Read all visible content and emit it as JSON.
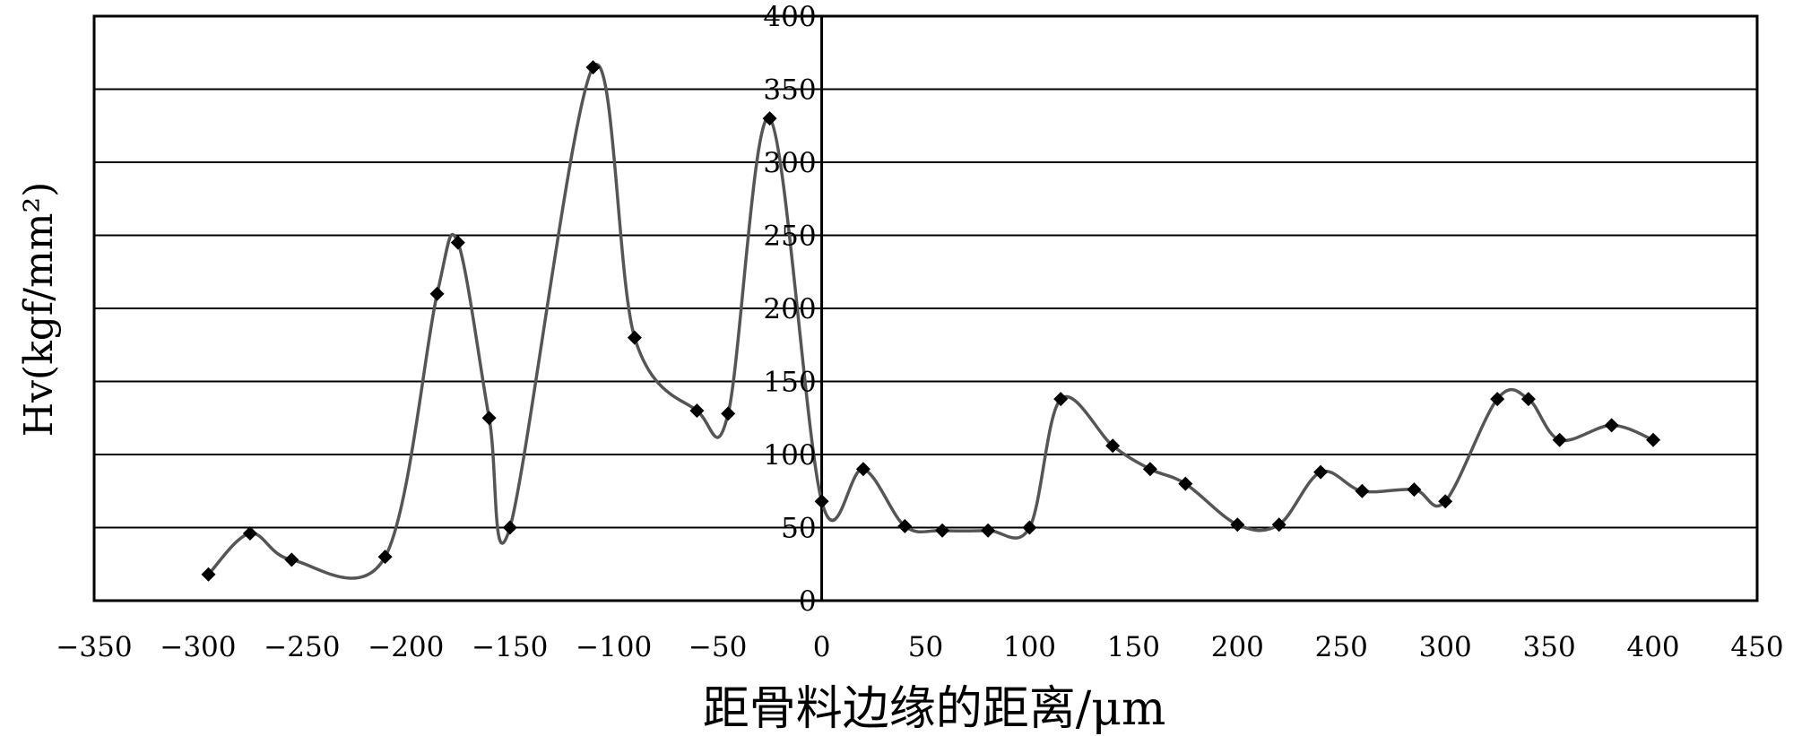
{
  "chart_data": {
    "type": "line",
    "xlabel": "距骨料边缘的距离/μm",
    "ylabel": "Hv(kgf/mm²)",
    "xlim": [
      -350,
      450
    ],
    "ylim": [
      0,
      400
    ],
    "x_ticks": [
      -350,
      -300,
      -250,
      -200,
      -150,
      -100,
      -50,
      0,
      50,
      100,
      150,
      200,
      250,
      300,
      350,
      400,
      450
    ],
    "y_ticks": [
      0,
      50,
      100,
      150,
      200,
      250,
      300,
      350,
      400
    ],
    "grid": "horizontal",
    "legend": "none",
    "marker": "diamond",
    "line_style": "smooth",
    "colors": {
      "line": "#555555",
      "marker": "#000000",
      "grid": "#000000"
    },
    "series": [
      {
        "points": [
          [
            -295,
            18
          ],
          [
            -275,
            46
          ],
          [
            -255,
            28
          ],
          [
            -210,
            30
          ],
          [
            -185,
            210
          ],
          [
            -175,
            245
          ],
          [
            -160,
            125
          ],
          [
            -150,
            50
          ],
          [
            -110,
            365
          ],
          [
            -90,
            180
          ],
          [
            -60,
            130
          ],
          [
            -45,
            128
          ],
          [
            -25,
            330
          ],
          [
            0,
            68
          ],
          [
            20,
            90
          ],
          [
            40,
            51
          ],
          [
            58,
            48
          ],
          [
            80,
            48
          ],
          [
            100,
            50
          ],
          [
            115,
            138
          ],
          [
            140,
            106
          ],
          [
            158,
            90
          ],
          [
            175,
            80
          ],
          [
            200,
            52
          ],
          [
            220,
            52
          ],
          [
            240,
            88
          ],
          [
            260,
            75
          ],
          [
            285,
            76
          ],
          [
            300,
            68
          ],
          [
            325,
            138
          ],
          [
            340,
            138
          ],
          [
            355,
            110
          ],
          [
            380,
            120
          ],
          [
            400,
            110
          ]
        ]
      }
    ]
  }
}
